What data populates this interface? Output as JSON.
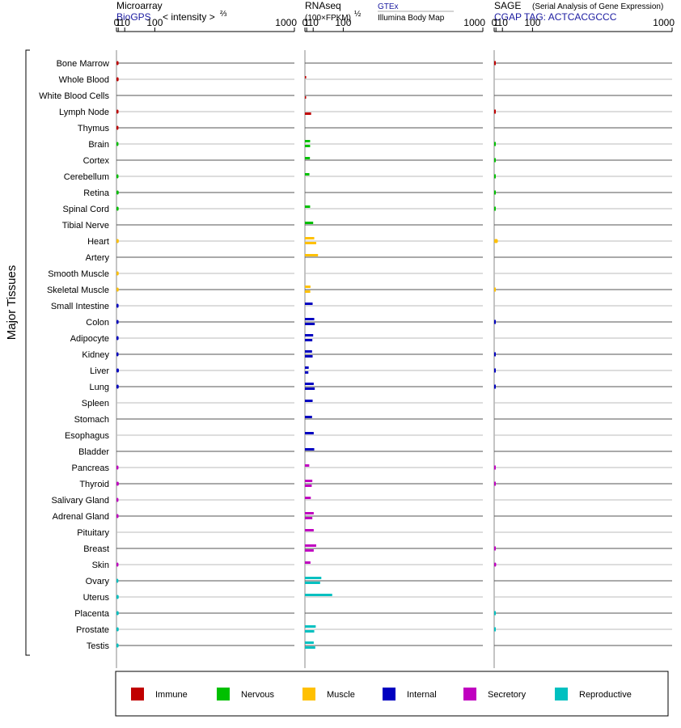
{
  "chart_data": {
    "type": "bar",
    "y_axis_label": "Major Tissues",
    "panels": [
      {
        "key": "microarray",
        "title": "Microarray",
        "subtitle_source": "BioGPS",
        "subtitle_unit": "< intensity >",
        "subtitle_exponent": "⅔",
        "ticks": [
          "0",
          "1",
          "10",
          "100",
          "1000"
        ],
        "xlim": [
          0,
          1000
        ]
      },
      {
        "key": "rnaseq",
        "title": "RNAseq",
        "subtitle_unit": "(100×FPKM)",
        "subtitle_exponent": "½",
        "source_a": "GTEx",
        "source_b": "Illumina Body Map",
        "ticks": [
          "0",
          "1",
          "10",
          "100",
          "1000"
        ],
        "xlim": [
          0,
          1000
        ]
      },
      {
        "key": "sage",
        "title": "SAGE",
        "title_note": "(Serial Analysis of Gene Expression)",
        "subtitle_source": "CGAP TAG: ACTCACGCCC",
        "ticks": [
          "0",
          "1",
          "10",
          "100",
          "1000"
        ],
        "xlim": [
          0,
          1000
        ]
      }
    ],
    "groups": [
      {
        "name": "Immune",
        "color": "#c00000"
      },
      {
        "name": "Nervous",
        "color": "#00c000"
      },
      {
        "name": "Muscle",
        "color": "#ffc000"
      },
      {
        "name": "Internal",
        "color": "#0000c0"
      },
      {
        "name": "Secretory",
        "color": "#c000c0"
      },
      {
        "name": "Reproductive",
        "color": "#00c0c0"
      }
    ],
    "tissues": [
      {
        "name": "Bone Marrow",
        "group": "Immune",
        "microarray": 1.3,
        "gtex": null,
        "ibm": null,
        "sage": 0
      },
      {
        "name": "Whole Blood",
        "group": "Immune",
        "microarray": 1.35,
        "gtex": 0.6,
        "ibm": null,
        "sage": null
      },
      {
        "name": "White Blood Cells",
        "group": "Immune",
        "microarray": null,
        "gtex": null,
        "ibm": 0.02,
        "sage": null
      },
      {
        "name": "Lymph Node",
        "group": "Immune",
        "microarray": 1.25,
        "gtex": null,
        "ibm": 6.5,
        "sage": 0
      },
      {
        "name": "Thymus",
        "group": "Immune",
        "microarray": 1.2,
        "gtex": null,
        "ibm": null,
        "sage": null
      },
      {
        "name": "Brain",
        "group": "Nervous",
        "microarray": 1.2,
        "gtex": 5.0,
        "ibm": 5.0,
        "sage": 0
      },
      {
        "name": "Cortex",
        "group": "Nervous",
        "microarray": null,
        "gtex": 4.7,
        "ibm": null,
        "sage": 0
      },
      {
        "name": "Cerebellum",
        "group": "Nervous",
        "microarray": 1.2,
        "gtex": 4.0,
        "ibm": null,
        "sage": 0
      },
      {
        "name": "Retina",
        "group": "Nervous",
        "microarray": 1.4,
        "gtex": null,
        "ibm": null,
        "sage": 0
      },
      {
        "name": "Spinal Cord",
        "group": "Nervous",
        "microarray": 1.35,
        "gtex": 5.0,
        "ibm": null,
        "sage": 0
      },
      {
        "name": "Tibial Nerve",
        "group": "Nervous",
        "microarray": null,
        "gtex": 10,
        "ibm": null,
        "sage": null
      },
      {
        "name": "Heart",
        "group": "Muscle",
        "microarray": 1.45,
        "gtex": 12,
        "ibm": 16,
        "sage": 3
      },
      {
        "name": "Artery",
        "group": "Muscle",
        "microarray": null,
        "gtex": 20,
        "ibm": null,
        "sage": null
      },
      {
        "name": "Smooth Muscle",
        "group": "Muscle",
        "microarray": 1.4,
        "gtex": null,
        "ibm": null,
        "sage": null
      },
      {
        "name": "Skeletal Muscle",
        "group": "Muscle",
        "microarray": 1.4,
        "gtex": 5.5,
        "ibm": 5.2,
        "sage": 0
      },
      {
        "name": "Small Intestine",
        "group": "Internal",
        "microarray": 1.3,
        "gtex": 9,
        "ibm": null,
        "sage": null
      },
      {
        "name": "Colon",
        "group": "Internal",
        "microarray": 1.3,
        "gtex": 12,
        "ibm": 13,
        "sage": 0
      },
      {
        "name": "Adipocyte",
        "group": "Internal",
        "microarray": 1.3,
        "gtex": 10,
        "ibm": 8.5,
        "sage": null
      },
      {
        "name": "Kidney",
        "group": "Internal",
        "microarray": 1.25,
        "gtex": 8,
        "ibm": 9,
        "sage": 0
      },
      {
        "name": "Liver",
        "group": "Internal",
        "microarray": 1.6,
        "gtex": 3.1,
        "ibm": 2.7,
        "sage": 0
      },
      {
        "name": "Lung",
        "group": "Internal",
        "microarray": 1.4,
        "gtex": 11,
        "ibm": 13,
        "sage": 0
      },
      {
        "name": "Spleen",
        "group": "Internal",
        "microarray": null,
        "gtex": 9,
        "ibm": null,
        "sage": null
      },
      {
        "name": "Stomach",
        "group": "Internal",
        "microarray": null,
        "gtex": 8,
        "ibm": null,
        "sage": null
      },
      {
        "name": "Esophagus",
        "group": "Internal",
        "microarray": null,
        "gtex": 11,
        "ibm": null,
        "sage": null
      },
      {
        "name": "Bladder",
        "group": "Internal",
        "microarray": null,
        "gtex": 12,
        "ibm": null,
        "sage": null
      },
      {
        "name": "Pancreas",
        "group": "Secretory",
        "microarray": 1.2,
        "gtex": 3.8,
        "ibm": null,
        "sage": 0
      },
      {
        "name": "Thyroid",
        "group": "Secretory",
        "microarray": 1.5,
        "gtex": 8.5,
        "ibm": 7.5,
        "sage": 0
      },
      {
        "name": "Salivary Gland",
        "group": "Secretory",
        "microarray": 1.2,
        "gtex": 6,
        "ibm": null,
        "sage": null
      },
      {
        "name": "Adrenal Gland",
        "group": "Secretory",
        "microarray": 1.25,
        "gtex": 11,
        "ibm": 8.5,
        "sage": null
      },
      {
        "name": "Pituitary",
        "group": "Secretory",
        "microarray": null,
        "gtex": 11,
        "ibm": null,
        "sage": null
      },
      {
        "name": "Breast",
        "group": "Secretory",
        "microarray": null,
        "gtex": 16,
        "ibm": 11,
        "sage": 0
      },
      {
        "name": "Skin",
        "group": "Secretory",
        "microarray": 1.2,
        "gtex": 5.5,
        "ibm": null,
        "sage": 1.2
      },
      {
        "name": "Ovary",
        "group": "Reproductive",
        "microarray": 1.1,
        "gtex": 28,
        "ibm": 25,
        "sage": null
      },
      {
        "name": "Uterus",
        "group": "Reproductive",
        "microarray": 1.4,
        "gtex": 60,
        "ibm": null,
        "sage": null
      },
      {
        "name": "Placenta",
        "group": "Reproductive",
        "microarray": 1.4,
        "gtex": null,
        "ibm": null,
        "sage": 0
      },
      {
        "name": "Prostate",
        "group": "Reproductive",
        "microarray": 1.4,
        "gtex": 15,
        "ibm": 12,
        "sage": 0
      },
      {
        "name": "Testis",
        "group": "Reproductive",
        "microarray": 1.3,
        "gtex": 11,
        "ibm": 14,
        "sage": null
      }
    ]
  }
}
